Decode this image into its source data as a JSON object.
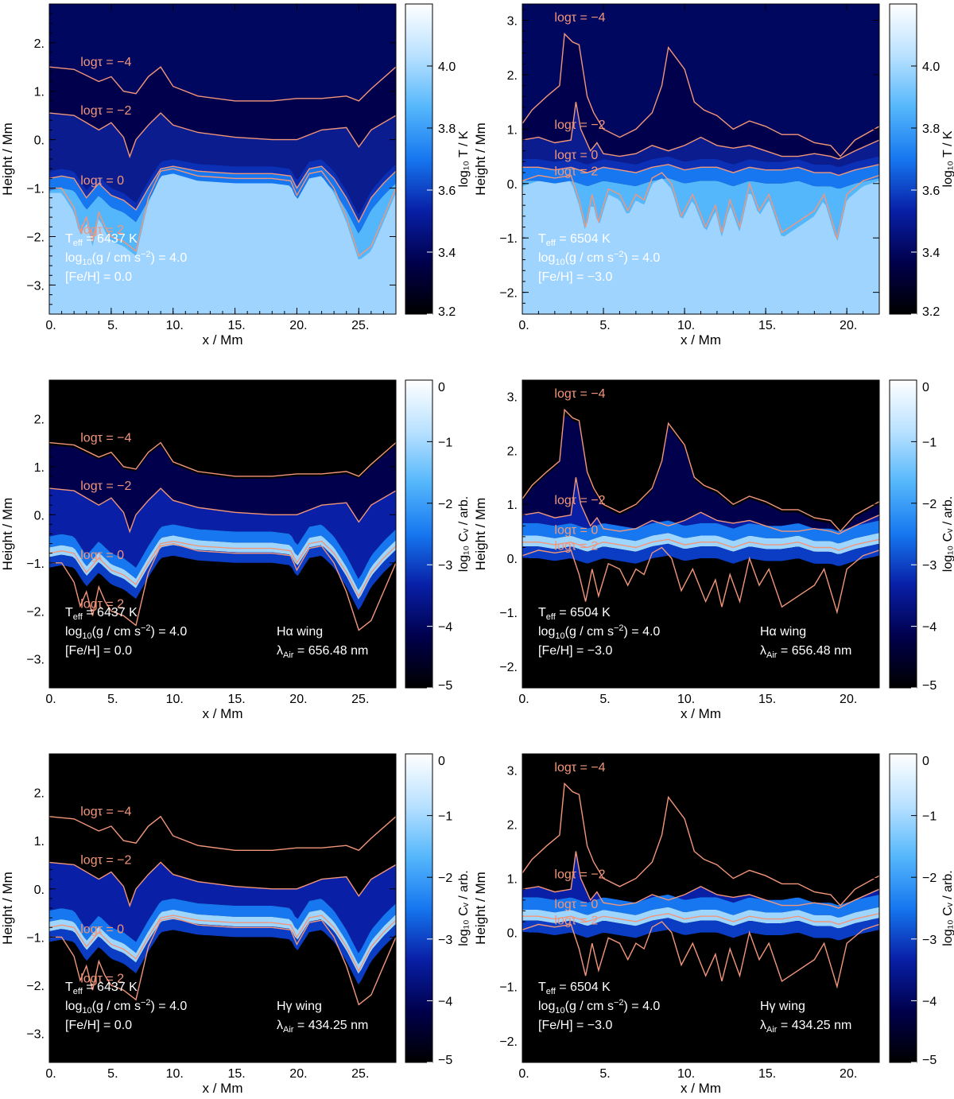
{
  "figure": {
    "tau_color": "#F2967A",
    "background_black": "#000000",
    "colormap_stops": [
      "#000000",
      "#00004C",
      "#081FA6",
      "#1677F0",
      "#55B7FB",
      "#B9E1FF",
      "#FFFFFF"
    ]
  },
  "chart_data": [
    {
      "type": "heatmap",
      "panel": "top-left",
      "quantity": "temperature",
      "x": {
        "label": "x / Mm",
        "range": [
          0,
          28
        ],
        "ticks": [
          0,
          5,
          10,
          15,
          20,
          25
        ],
        "tick_labels": [
          "0.",
          "5.",
          "10.",
          "15.",
          "20.",
          "25."
        ]
      },
      "y": {
        "label": "Height / Mm",
        "range": [
          -3.6,
          2.8
        ],
        "ticks": [
          -3,
          -2,
          -1,
          0,
          1,
          2
        ],
        "tick_labels": [
          "−3.",
          "−2.",
          "−1.",
          "0.",
          "1.",
          "2."
        ]
      },
      "colorbar": {
        "label": "log₁₀ T / K",
        "range": [
          3.2,
          4.2
        ],
        "ticks": [
          3.2,
          3.4,
          3.6,
          3.8,
          4.0
        ],
        "tick_labels": [
          "3.2",
          "3.4",
          "3.6",
          "3.8",
          "4.0"
        ]
      },
      "contours": [
        {
          "label": "logτ = −4",
          "x": [
            0,
            2,
            4,
            5,
            6,
            7,
            8,
            9,
            10,
            12,
            15,
            18,
            20,
            22,
            24,
            25,
            26,
            28
          ],
          "y": [
            1.5,
            1.45,
            1.2,
            1.3,
            1.0,
            0.95,
            1.3,
            1.5,
            1.1,
            0.9,
            0.8,
            0.8,
            0.85,
            0.85,
            0.9,
            0.8,
            1.05,
            1.5
          ]
        },
        {
          "label": "logτ = −2",
          "x": [
            0,
            2,
            4,
            5,
            6,
            6.5,
            7,
            8,
            9,
            10,
            12,
            15,
            18,
            20,
            22,
            24,
            25,
            26,
            28
          ],
          "y": [
            0.55,
            0.5,
            0.2,
            0.35,
            0.05,
            -0.35,
            0.0,
            0.3,
            0.55,
            0.3,
            0.15,
            0.05,
            0.0,
            0.0,
            0.2,
            0.25,
            -0.15,
            0.2,
            0.5
          ]
        },
        {
          "label": "logτ = 0",
          "x": [
            0,
            1,
            2,
            3,
            4,
            5,
            6,
            7,
            8,
            9,
            10,
            12,
            15,
            18,
            19.5,
            20,
            21,
            22,
            23,
            24,
            25,
            26,
            27,
            28
          ],
          "y": [
            -0.8,
            -0.75,
            -0.8,
            -1.2,
            -0.9,
            -1.15,
            -1.25,
            -1.45,
            -1.0,
            -0.6,
            -0.55,
            -0.65,
            -0.7,
            -0.7,
            -0.75,
            -1.0,
            -0.6,
            -0.55,
            -0.8,
            -1.2,
            -1.7,
            -1.2,
            -0.9,
            -0.65
          ]
        },
        {
          "label": "logτ = 2",
          "x": [
            0,
            1,
            2,
            2.5,
            3,
            3.5,
            4,
            4.5,
            5,
            6,
            7,
            8,
            9,
            10,
            12,
            15,
            18,
            19.5,
            20,
            21,
            22,
            23,
            24,
            25,
            26,
            27,
            28
          ],
          "y": [
            -1.0,
            -1.0,
            -1.4,
            -1.9,
            -1.6,
            -2.1,
            -1.5,
            -1.8,
            -2.0,
            -2.1,
            -2.3,
            -1.2,
            -0.65,
            -0.6,
            -0.75,
            -0.8,
            -0.8,
            -0.85,
            -1.15,
            -0.7,
            -0.65,
            -1.0,
            -1.6,
            -2.4,
            -2.2,
            -1.6,
            -1.0
          ]
        }
      ],
      "annotations": {
        "teff": "6437 K",
        "logg": "4.0",
        "feh": " 0.0"
      }
    },
    {
      "type": "heatmap",
      "panel": "top-right",
      "quantity": "temperature",
      "x": {
        "label": "x / Mm",
        "range": [
          0,
          22
        ],
        "ticks": [
          0,
          5,
          10,
          15,
          20
        ],
        "tick_labels": [
          "0.",
          "5.",
          "10.",
          "15.",
          "20."
        ]
      },
      "y": {
        "label": "Height / Mm",
        "range": [
          -2.4,
          3.3
        ],
        "ticks": [
          -2,
          -1,
          0,
          1,
          2,
          3
        ],
        "tick_labels": [
          "−2.",
          "−1.",
          "0.",
          "1.",
          "2.",
          "3."
        ]
      },
      "colorbar": {
        "label": "log₁₀ T / K",
        "range": [
          3.2,
          4.2
        ],
        "ticks": [
          3.2,
          3.4,
          3.6,
          3.8,
          4.0
        ],
        "tick_labels": [
          "3.2",
          "3.4",
          "3.6",
          "3.8",
          "4.0"
        ]
      },
      "contours": [
        {
          "label": "logτ = −4",
          "x": [
            0,
            0.6,
            1.5,
            2.3,
            2.6,
            3.1,
            3.5,
            4.0,
            4.4,
            5.0,
            6.0,
            7.0,
            8.0,
            8.6,
            9.0,
            10.0,
            10.6,
            11.2,
            12.0,
            13.0,
            14.0,
            15.0,
            16.0,
            17.0,
            18.0,
            19.0,
            19.6,
            20.5,
            22.0
          ],
          "y": [
            1.1,
            1.35,
            1.6,
            1.8,
            2.75,
            2.6,
            2.55,
            1.6,
            1.3,
            1.0,
            0.85,
            1.0,
            1.3,
            1.8,
            2.5,
            2.1,
            1.5,
            1.35,
            1.25,
            1.0,
            1.15,
            1.05,
            0.9,
            0.9,
            0.75,
            0.7,
            0.5,
            0.8,
            1.05
          ]
        },
        {
          "label": "logτ = −2",
          "x": [
            0,
            1.0,
            2.0,
            3.0,
            3.3,
            3.6,
            4.2,
            4.6,
            5.0,
            6.0,
            7.0,
            8.0,
            9.0,
            10.0,
            11.0,
            12.0,
            13.0,
            14.0,
            15.0,
            16.0,
            17.0,
            18.0,
            19.0,
            19.5,
            20.5,
            22.0
          ],
          "y": [
            0.8,
            0.85,
            0.75,
            0.8,
            1.5,
            1.0,
            0.6,
            0.75,
            0.55,
            0.5,
            0.55,
            0.7,
            0.6,
            0.7,
            0.85,
            0.7,
            0.65,
            0.7,
            0.6,
            0.5,
            0.5,
            0.55,
            0.5,
            0.45,
            0.6,
            0.8
          ]
        },
        {
          "label": "logτ = 0",
          "x": [
            0,
            1.0,
            2.0,
            3.0,
            4.0,
            5.0,
            6.0,
            7.0,
            8.0,
            9.0,
            10.0,
            11.0,
            12.0,
            13.0,
            14.0,
            15.0,
            16.0,
            17.0,
            18.0,
            19.0,
            19.5,
            20.5,
            22.0
          ],
          "y": [
            0.3,
            0.3,
            0.25,
            0.3,
            0.2,
            0.3,
            0.25,
            0.2,
            0.3,
            0.35,
            0.25,
            0.3,
            0.3,
            0.2,
            0.3,
            0.25,
            0.25,
            0.3,
            0.2,
            0.2,
            0.15,
            0.25,
            0.35
          ]
        },
        {
          "label": "logτ = 2",
          "x": [
            0,
            1.0,
            2.0,
            3.0,
            3.5,
            3.9,
            4.3,
            4.7,
            5.3,
            6.0,
            6.5,
            7.0,
            7.5,
            8.0,
            8.6,
            9.2,
            9.8,
            10.5,
            11.3,
            11.9,
            12.3,
            12.8,
            13.4,
            14.0,
            14.6,
            15.2,
            16.0,
            17.0,
            18.0,
            18.6,
            19.4,
            20.0,
            21.0,
            22.0
          ],
          "y": [
            0.05,
            0.15,
            0.1,
            0.15,
            -0.3,
            -0.8,
            -0.2,
            -0.7,
            -0.1,
            -0.2,
            -0.5,
            -0.2,
            -0.3,
            0.1,
            0.2,
            0.0,
            -0.6,
            -0.2,
            -0.8,
            -0.4,
            -0.9,
            -0.3,
            -0.8,
            0.0,
            -0.5,
            -0.2,
            -0.9,
            -0.7,
            -0.5,
            -0.2,
            -1.0,
            -0.2,
            0.05,
            0.15
          ]
        }
      ],
      "annotations": {
        "teff": "6504 K",
        "logg": "4.0",
        "feh": "−3.0"
      }
    },
    {
      "type": "heatmap",
      "panel": "middle-left",
      "quantity": "contribution",
      "x": {
        "label": "x / Mm",
        "range": [
          0,
          28
        ],
        "ticks": [
          0,
          5,
          10,
          15,
          20,
          25
        ],
        "tick_labels": [
          "0.",
          "5.",
          "10.",
          "15.",
          "20.",
          "25."
        ]
      },
      "y": {
        "label": "Height / Mm",
        "range": [
          -3.6,
          2.8
        ],
        "ticks": [
          -3,
          -2,
          -1,
          0,
          1,
          2
        ],
        "tick_labels": [
          "−3.",
          "−2.",
          "−1.",
          "0.",
          "1.",
          "2."
        ]
      },
      "colorbar": {
        "label": "log₁₀ Cᵥ / arb.",
        "range": [
          -5,
          0
        ],
        "ticks": [
          -5,
          -4,
          -3,
          -2,
          -1,
          0
        ],
        "tick_labels": [
          "−5",
          "−4",
          "−3",
          "−2",
          "−1",
          "0"
        ]
      },
      "contour_ref": "top-left",
      "annotations": {
        "teff": "6437 K",
        "logg": "4.0",
        "feh": " 0.0",
        "line": "Hα wing",
        "lambda": "656.48 nm"
      }
    },
    {
      "type": "heatmap",
      "panel": "middle-right",
      "quantity": "contribution",
      "x": {
        "label": "x / Mm",
        "range": [
          0,
          22
        ],
        "ticks": [
          0,
          5,
          10,
          15,
          20
        ],
        "tick_labels": [
          "0.",
          "5.",
          "10.",
          "15.",
          "20."
        ]
      },
      "y": {
        "label": "Height / Mm",
        "range": [
          -2.4,
          3.3
        ],
        "ticks": [
          -2,
          -1,
          0,
          1,
          2,
          3
        ],
        "tick_labels": [
          "−2.",
          "−1.",
          "0.",
          "1.",
          "2.",
          "3."
        ]
      },
      "colorbar": {
        "label": "log₁₀ Cᵥ / arb.",
        "range": [
          -5,
          0
        ],
        "ticks": [
          -5,
          -4,
          -3,
          -2,
          -1,
          0
        ],
        "tick_labels": [
          "−5",
          "−4",
          "−3",
          "−2",
          "−1",
          "0"
        ]
      },
      "contour_ref": "top-right",
      "annotations": {
        "teff": "6504 K",
        "logg": "4.0",
        "feh": "−3.0",
        "line": "Hα wing",
        "lambda": "656.48 nm"
      }
    },
    {
      "type": "heatmap",
      "panel": "bottom-left",
      "quantity": "contribution",
      "x": {
        "label": "x / Mm",
        "range": [
          0,
          28
        ],
        "ticks": [
          0,
          5,
          10,
          15,
          20,
          25
        ],
        "tick_labels": [
          "0.",
          "5.",
          "10.",
          "15.",
          "20.",
          "25."
        ]
      },
      "y": {
        "label": "Height / Mm",
        "range": [
          -3.6,
          2.8
        ],
        "ticks": [
          -3,
          -2,
          -1,
          0,
          1,
          2
        ],
        "tick_labels": [
          "−3.",
          "−2.",
          "−1.",
          "0.",
          "1.",
          "2."
        ]
      },
      "colorbar": {
        "label": "log₁₀ Cᵥ / arb.",
        "range": [
          -5,
          0
        ],
        "ticks": [
          -5,
          -4,
          -3,
          -2,
          -1,
          0
        ],
        "tick_labels": [
          "−5",
          "−4",
          "−3",
          "−2",
          "−1",
          "0"
        ]
      },
      "contour_ref": "top-left",
      "annotations": {
        "teff": "6437 K",
        "logg": "4.0",
        "feh": " 0.0",
        "line": "Hγ wing",
        "lambda": "434.25 nm"
      }
    },
    {
      "type": "heatmap",
      "panel": "bottom-right",
      "quantity": "contribution",
      "x": {
        "label": "x / Mm",
        "range": [
          0,
          22
        ],
        "ticks": [
          0,
          5,
          10,
          15,
          20
        ],
        "tick_labels": [
          "0.",
          "5.",
          "10.",
          "15.",
          "20."
        ]
      },
      "y": {
        "label": "Height / Mm",
        "range": [
          -2.4,
          3.3
        ],
        "ticks": [
          -2,
          -1,
          0,
          1,
          2,
          3
        ],
        "tick_labels": [
          "−2.",
          "−1.",
          "0.",
          "1.",
          "2.",
          "3."
        ]
      },
      "colorbar": {
        "label": "log₁₀ Cᵥ / arb.",
        "range": [
          -5,
          0
        ],
        "ticks": [
          -5,
          -4,
          -3,
          -2,
          -1,
          0
        ],
        "tick_labels": [
          "−5",
          "−4",
          "−3",
          "−2",
          "−1",
          "0"
        ]
      },
      "contour_ref": "top-right",
      "annotations": {
        "teff": "6504 K",
        "logg": "4.0",
        "feh": "−3.0",
        "line": "Hγ wing",
        "lambda": "434.25 nm"
      }
    }
  ]
}
